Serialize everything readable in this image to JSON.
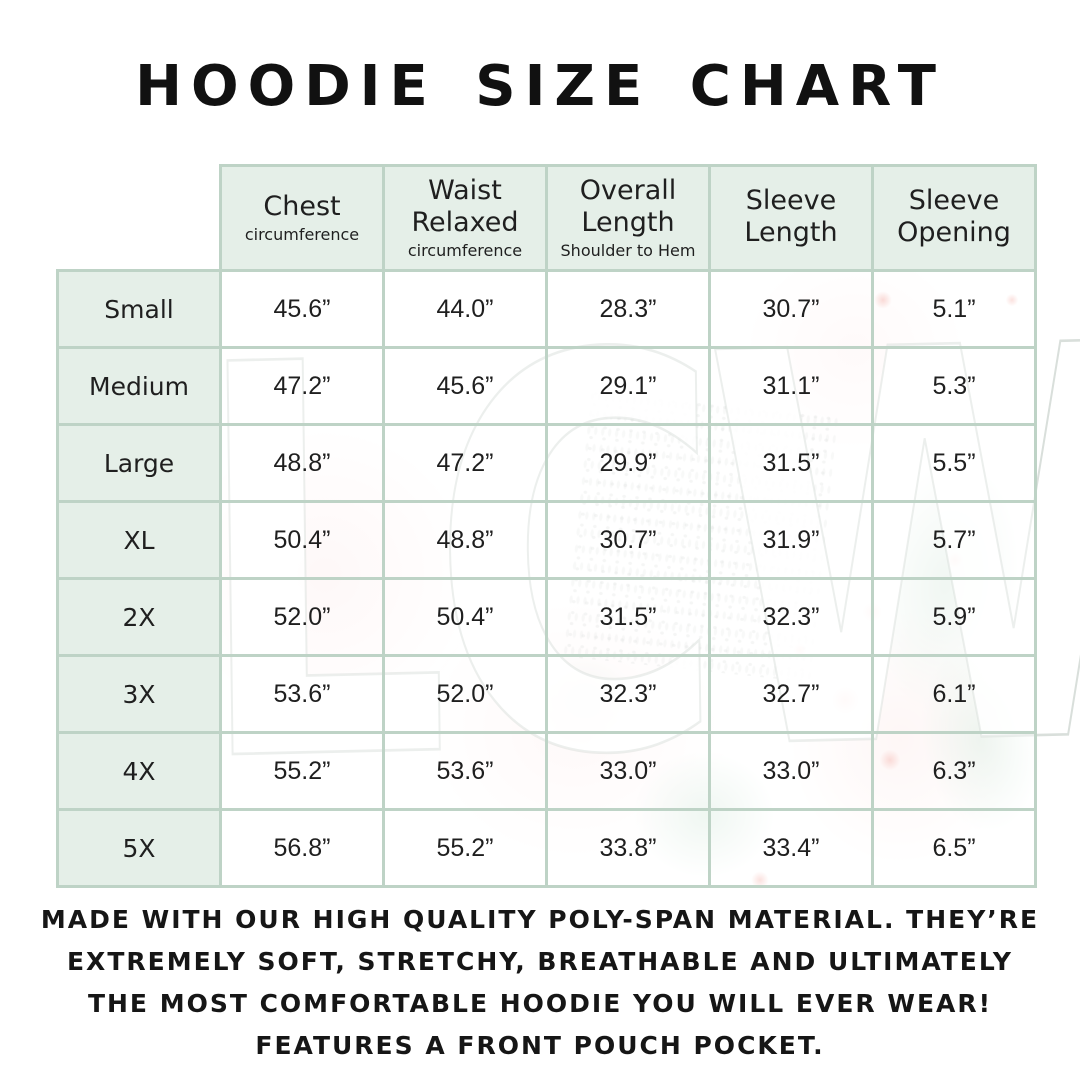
{
  "title": "HOODIE SIZE CHART",
  "watermark_text": "LCW",
  "colors": {
    "table-border": "#bed3c6",
    "cell-tint": "#e4eee7",
    "text": "#1f1f1f",
    "wash-pink": "#f8cdcd",
    "wash-green": "#a8cdb4",
    "flower-red": "#ec7a6e"
  },
  "table": {
    "columns": [
      {
        "title": "Chest",
        "subtitle": "circumference"
      },
      {
        "title": "Waist Relaxed",
        "subtitle": "circumference"
      },
      {
        "title": "Overall Length",
        "subtitle": "Shoulder to Hem"
      },
      {
        "title": "Sleeve Length",
        "subtitle": ""
      },
      {
        "title": "Sleeve Opening",
        "subtitle": ""
      }
    ],
    "rows": [
      {
        "label": "Small",
        "values": [
          "45.6”",
          "44.0”",
          "28.3”",
          "30.7”",
          "5.1”"
        ]
      },
      {
        "label": "Medium",
        "values": [
          "47.2”",
          "45.6”",
          "29.1”",
          "31.1”",
          "5.3”"
        ]
      },
      {
        "label": "Large",
        "values": [
          "48.8”",
          "47.2”",
          "29.9”",
          "31.5”",
          "5.5”"
        ]
      },
      {
        "label": "XL",
        "values": [
          "50.4”",
          "48.8”",
          "30.7”",
          "31.9”",
          "5.7”"
        ]
      },
      {
        "label": "2X",
        "values": [
          "52.0”",
          "50.4”",
          "31.5”",
          "32.3”",
          "5.9”"
        ]
      },
      {
        "label": "3X",
        "values": [
          "53.6”",
          "52.0”",
          "32.3”",
          "32.7”",
          "6.1”"
        ]
      },
      {
        "label": "4X",
        "values": [
          "55.2”",
          "53.6”",
          "33.0”",
          "33.0”",
          "6.3”"
        ]
      },
      {
        "label": "5X",
        "values": [
          "56.8”",
          "55.2”",
          "33.8”",
          "33.4”",
          "6.5”"
        ]
      }
    ]
  },
  "description_lines": [
    "MADE WITH OUR HIGH QUALITY POLY-SPAN MATERIAL. THEY’RE",
    "EXTREMELY SOFT, STRETCHY, BREATHABLE AND ULTIMATELY",
    "THE MOST COMFORTABLE HOODIE YOU WILL EVER WEAR!",
    "FEATURES A FRONT POUCH POCKET."
  ]
}
